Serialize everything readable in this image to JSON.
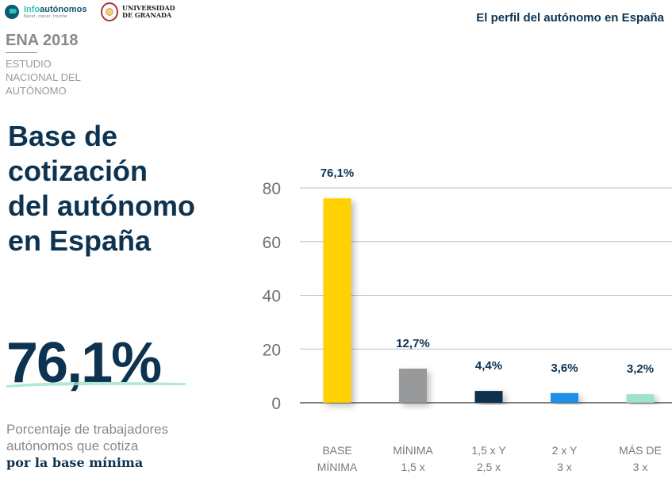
{
  "header": {
    "brand_info": "Info",
    "brand_autonomos": "autónomos",
    "brand_tagline": "Nacer, crecer, triunfar",
    "university_line1": "UNIVERSIDAD",
    "university_line2": "DE GRANADA",
    "title": "El perfil del autónomo en España"
  },
  "study": {
    "name": "ENA 2018",
    "line1": "ESTUDIO",
    "line2": "NACIONAL DEL",
    "line3": "AUTÓNOMO"
  },
  "headline": {
    "line1": "Base de",
    "line2": "cotización",
    "line3": "del autónomo",
    "line4": "en España"
  },
  "highlight": {
    "value": "76,1%",
    "desc_line1": "Porcentaje de trabajadores",
    "desc_line2": "autónomos que cotiza",
    "desc_strong": "por la base mínima"
  },
  "chart_data": {
    "type": "bar",
    "categories": [
      [
        "BASE",
        "MÍNIMA"
      ],
      [
        "MÍNIMA",
        "1,5 x"
      ],
      [
        "1,5 x Y",
        "2,5 x"
      ],
      [
        "2 x Y",
        "3 x"
      ],
      [
        "MÁS DE",
        "3 x"
      ]
    ],
    "values": [
      76.1,
      12.7,
      4.4,
      3.6,
      3.2
    ],
    "data_labels": [
      "76,1%",
      "12,7%",
      "4,4%",
      "3,6%",
      "3,2%"
    ],
    "colors": [
      "#ffd100",
      "#97999b",
      "#0d3350",
      "#1e8fe6",
      "#9fe3c9"
    ],
    "yticks": [
      0,
      20,
      40,
      60,
      80
    ],
    "ylim": [
      0,
      80
    ],
    "grid": true,
    "accent": "#0d3350"
  }
}
